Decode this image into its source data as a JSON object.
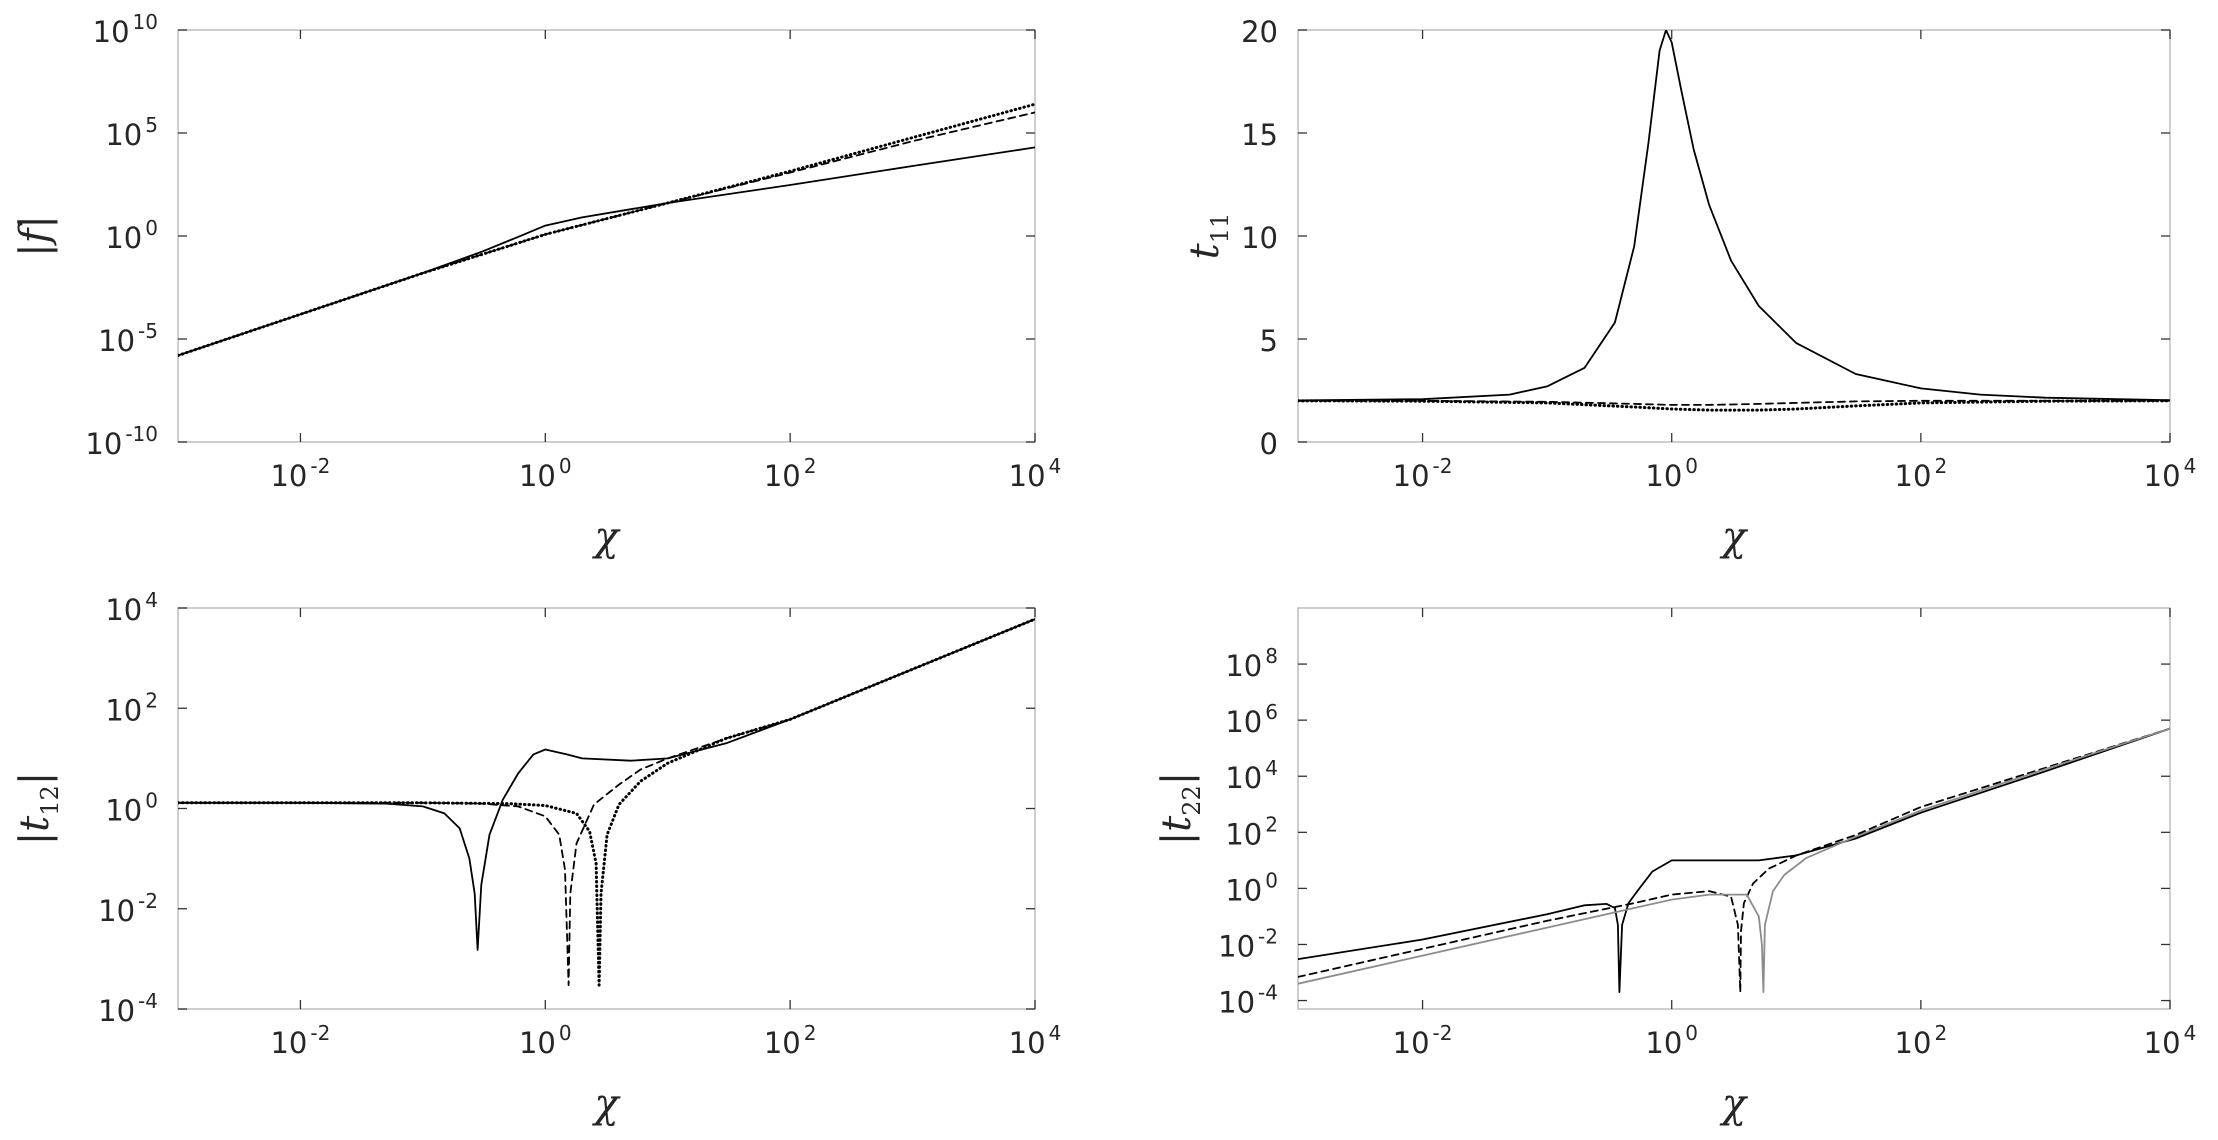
{
  "chart_data": [
    {
      "type": "line",
      "panel": "top-left",
      "xlabel": "χ",
      "ylabel": "|f|",
      "xscale": "log",
      "yscale": "log",
      "xlim": [
        0.001,
        10000
      ],
      "ylim": [
        1e-10,
        10000000000.0
      ],
      "xticks": [
        0.01,
        1,
        100,
        10000
      ],
      "yticks": [
        1e-10,
        1e-05,
        1,
        100000.0,
        10000000000.0
      ],
      "xtick_labels": [
        {
          "base": "10",
          "exp": "-2"
        },
        {
          "base": "10",
          "exp": "0"
        },
        {
          "base": "10",
          "exp": "2"
        },
        {
          "base": "10",
          "exp": "4"
        }
      ],
      "ytick_labels": [
        {
          "base": "10",
          "exp": "-10"
        },
        {
          "base": "10",
          "exp": "-5"
        },
        {
          "base": "10",
          "exp": "0"
        },
        {
          "base": "10",
          "exp": "5"
        },
        {
          "base": "10",
          "exp": "10"
        }
      ],
      "grid": false,
      "series": [
        {
          "style": "solid",
          "color": "#000000",
          "x": [
            0.001,
            0.01,
            0.1,
            0.3,
            0.6,
            1,
            2,
            5,
            10,
            100,
            1000,
            10000
          ],
          "y": [
            1.58e-06,
            0.000158,
            0.016,
            0.17,
            0.9,
            3.2,
            8,
            20,
            40,
            300,
            2500,
            20000
          ]
        },
        {
          "style": "dashed",
          "color": "#000000",
          "x": [
            0.001,
            0.01,
            0.1,
            1,
            10,
            100,
            1000,
            10000
          ],
          "y": [
            1.58e-06,
            0.000158,
            0.0158,
            1.2,
            40,
            1200,
            40000,
            1000000
          ]
        },
        {
          "style": "dotted",
          "color": "#000000",
          "x": [
            0.001,
            0.01,
            0.1,
            1,
            10,
            100,
            1000,
            10000
          ],
          "y": [
            1.58e-06,
            0.000158,
            0.0158,
            1.2,
            40,
            1400,
            60000,
            2500000
          ]
        }
      ]
    },
    {
      "type": "line",
      "panel": "top-right",
      "xlabel": "χ",
      "ylabel": "t",
      "ylabel_sub": "11",
      "xscale": "log",
      "yscale": "linear",
      "xlim": [
        0.001,
        10000
      ],
      "ylim": [
        0,
        20
      ],
      "xticks": [
        0.01,
        1,
        100,
        10000
      ],
      "yticks": [
        0,
        5,
        10,
        15,
        20
      ],
      "xtick_labels": [
        {
          "base": "10",
          "exp": "-2"
        },
        {
          "base": "10",
          "exp": "0"
        },
        {
          "base": "10",
          "exp": "2"
        },
        {
          "base": "10",
          "exp": "4"
        }
      ],
      "ytick_labels": [
        "0",
        "5",
        "10",
        "15",
        "20"
      ],
      "grid": false,
      "series": [
        {
          "style": "solid",
          "color": "#000000",
          "x": [
            0.001,
            0.01,
            0.05,
            0.1,
            0.2,
            0.35,
            0.5,
            0.65,
            0.8,
            0.9,
            1.0,
            1.2,
            1.5,
            2,
            3,
            5,
            10,
            30,
            100,
            300,
            1000,
            10000
          ],
          "y": [
            2.02,
            2.08,
            2.3,
            2.7,
            3.6,
            5.8,
            9.5,
            14.5,
            19.0,
            20.0,
            19.4,
            17.0,
            14.2,
            11.5,
            8.8,
            6.6,
            4.8,
            3.3,
            2.6,
            2.3,
            2.15,
            2.03
          ]
        },
        {
          "style": "dashed",
          "color": "#000000",
          "x": [
            0.001,
            0.01,
            0.1,
            0.5,
            1,
            2,
            5,
            10,
            30,
            100,
            1000,
            10000
          ],
          "y": [
            2.0,
            2.0,
            1.95,
            1.85,
            1.8,
            1.8,
            1.85,
            1.9,
            1.97,
            2.0,
            2.0,
            2.0
          ]
        },
        {
          "style": "dotted",
          "color": "#000000",
          "x": [
            0.001,
            0.01,
            0.1,
            0.5,
            1,
            2,
            5,
            10,
            30,
            100,
            1000,
            10000
          ],
          "y": [
            2.0,
            1.98,
            1.9,
            1.7,
            1.6,
            1.55,
            1.55,
            1.6,
            1.75,
            1.9,
            1.98,
            2.0
          ]
        }
      ]
    },
    {
      "type": "line",
      "panel": "bottom-left",
      "xlabel": "χ",
      "ylabel": "|t",
      "ylabel_sub": "12",
      "ylabel_tail": "|",
      "xscale": "log",
      "yscale": "log",
      "xlim": [
        0.001,
        10000
      ],
      "ylim": [
        0.0001,
        10000
      ],
      "xticks": [
        0.01,
        1,
        100,
        10000
      ],
      "yticks": [
        0.0001,
        0.01,
        1,
        100,
        10000
      ],
      "xtick_labels": [
        {
          "base": "10",
          "exp": "-2"
        },
        {
          "base": "10",
          "exp": "0"
        },
        {
          "base": "10",
          "exp": "2"
        },
        {
          "base": "10",
          "exp": "4"
        }
      ],
      "ytick_labels": [
        {
          "base": "10",
          "exp": "-4"
        },
        {
          "base": "10",
          "exp": "-2"
        },
        {
          "base": "10",
          "exp": "0"
        },
        {
          "base": "10",
          "exp": "2"
        },
        {
          "base": "10",
          "exp": "4"
        }
      ],
      "grid": false,
      "series": [
        {
          "style": "solid",
          "color": "#000000",
          "x": [
            0.001,
            0.01,
            0.05,
            0.1,
            0.15,
            0.2,
            0.24,
            0.265,
            0.28,
            0.3,
            0.35,
            0.45,
            0.6,
            0.8,
            1,
            1.5,
            2,
            5,
            10,
            30,
            100,
            1000,
            10000
          ],
          "y": [
            1.3,
            1.3,
            1.25,
            1.1,
            0.8,
            0.4,
            0.1,
            0.02,
            0.0015,
            0.03,
            0.3,
            1.5,
            5,
            12,
            15,
            12,
            10,
            9,
            10,
            20,
            60,
            600,
            6000
          ]
        },
        {
          "style": "dashed",
          "color": "#000000",
          "x": [
            0.001,
            0.01,
            0.1,
            0.3,
            0.6,
            1,
            1.3,
            1.45,
            1.55,
            1.6,
            1.8,
            2.5,
            4,
            6,
            10,
            30,
            100,
            1000,
            10000
          ],
          "y": [
            1.3,
            1.3,
            1.3,
            1.25,
            1.1,
            0.7,
            0.3,
            0.06,
            0.0003,
            0.02,
            0.2,
            1.2,
            3,
            6,
            10,
            25,
            60,
            600,
            6000
          ]
        },
        {
          "style": "dotted",
          "color": "#000000",
          "x": [
            0.001,
            0.01,
            0.1,
            0.5,
            1,
            1.8,
            2.3,
            2.6,
            2.75,
            2.85,
            3.2,
            4,
            6,
            10,
            30,
            100,
            1000,
            10000
          ],
          "y": [
            1.3,
            1.3,
            1.3,
            1.25,
            1.15,
            0.8,
            0.35,
            0.08,
            0.0003,
            0.02,
            0.3,
            1.2,
            3.5,
            8,
            25,
            60,
            600,
            6000
          ]
        }
      ]
    },
    {
      "type": "line",
      "panel": "bottom-right",
      "xlabel": "χ",
      "ylabel": "|t",
      "ylabel_sub": "22",
      "ylabel_tail": "|",
      "xscale": "log",
      "yscale": "log",
      "xlim": [
        0.001,
        10000
      ],
      "ylim": [
        5e-05,
        10000000000.0
      ],
      "xticks": [
        0.01,
        1,
        100,
        10000
      ],
      "yticks": [
        0.0001,
        0.01,
        1,
        100,
        10000,
        1000000,
        100000000
      ],
      "xtick_labels": [
        {
          "base": "10",
          "exp": "-2"
        },
        {
          "base": "10",
          "exp": "0"
        },
        {
          "base": "10",
          "exp": "2"
        },
        {
          "base": "10",
          "exp": "4"
        }
      ],
      "ytick_labels": [
        {
          "base": "10",
          "exp": "-4"
        },
        {
          "base": "10",
          "exp": "-2"
        },
        {
          "base": "10",
          "exp": "0"
        },
        {
          "base": "10",
          "exp": "2"
        },
        {
          "base": "10",
          "exp": "4"
        },
        {
          "base": "10",
          "exp": "6"
        },
        {
          "base": "10",
          "exp": "8"
        }
      ],
      "grid": false,
      "series": [
        {
          "style": "solid",
          "color": "#000000",
          "x": [
            0.001,
            0.01,
            0.1,
            0.2,
            0.3,
            0.35,
            0.37,
            0.38,
            0.4,
            0.45,
            0.55,
            0.7,
            1,
            2,
            5,
            10,
            30,
            100,
            1000,
            10000
          ],
          "y": [
            0.003,
            0.015,
            0.12,
            0.25,
            0.28,
            0.2,
            0.05,
            0.0002,
            0.05,
            0.3,
            1,
            4,
            10,
            10,
            10,
            15,
            60,
            500,
            15000,
            500000
          ]
        },
        {
          "style": "dashed",
          "color": "#000000",
          "x": [
            0.001,
            0.01,
            0.1,
            0.5,
            1,
            2,
            3,
            3.4,
            3.55,
            3.6,
            3.8,
            4.5,
            6,
            10,
            30,
            100,
            1000,
            10000
          ],
          "y": [
            0.0007,
            0.007,
            0.07,
            0.3,
            0.6,
            0.8,
            0.5,
            0.05,
            0.0002,
            0.03,
            0.3,
            1.5,
            5,
            15,
            80,
            800,
            20000,
            500000
          ]
        },
        {
          "style": "solid",
          "color": "#8c8c8c",
          "x": [
            0.001,
            0.01,
            0.1,
            0.5,
            1,
            2,
            4,
            5,
            5.3,
            5.45,
            5.6,
            6.5,
            8,
            12,
            30,
            100,
            1000,
            10000
          ],
          "y": [
            0.0004,
            0.004,
            0.04,
            0.2,
            0.4,
            0.6,
            0.6,
            0.1,
            0.01,
            0.0002,
            0.05,
            0.8,
            3,
            12,
            70,
            600,
            18000,
            500000
          ]
        }
      ]
    }
  ]
}
